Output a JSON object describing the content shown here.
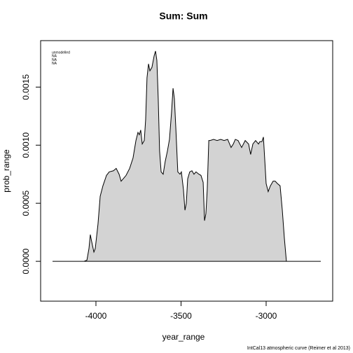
{
  "chart_data": {
    "type": "area",
    "title": "Sum:  Sum",
    "xlabel": "year_range",
    "ylabel": "prob_range",
    "legend": [
      "unmodelled",
      "NA",
      "NA",
      "NA"
    ],
    "caption": "IntCal13 atmospheric curve (Reimer et al 2013)",
    "color": "#d3d3d3",
    "line_color": "#000000",
    "x": [
      -4255,
      -4070,
      -4053,
      -4041,
      -4033,
      -4025,
      -4012,
      -4004,
      -3988,
      -3975,
      -3959,
      -3938,
      -3922,
      -3897,
      -3881,
      -3864,
      -3852,
      -3840,
      -3823,
      -3802,
      -3782,
      -3765,
      -3753,
      -3745,
      -3737,
      -3728,
      -3716,
      -3708,
      -3700,
      -3691,
      -3683,
      -3671,
      -3658,
      -3650,
      -3642,
      -3634,
      -3626,
      -3617,
      -3605,
      -3593,
      -3580,
      -3568,
      -3556,
      -3547,
      -3539,
      -3531,
      -3519,
      -3506,
      -3498,
      -3486,
      -3477,
      -3469,
      -3461,
      -3449,
      -3436,
      -3424,
      -3412,
      -3395,
      -3383,
      -3370,
      -3362,
      -3354,
      -3346,
      -3337,
      -3329,
      -3309,
      -3288,
      -3267,
      -3247,
      -3226,
      -3206,
      -3193,
      -3181,
      -3165,
      -3144,
      -3123,
      -3103,
      -3091,
      -3078,
      -3062,
      -3045,
      -3037,
      -3025,
      -3016,
      -3000,
      -2988,
      -2975,
      -2959,
      -2947,
      -2934,
      -2918,
      -2905,
      -2893,
      -2881,
      -2679
    ],
    "values": [
      0,
      0,
      1e-05,
      0.00011,
      0.00023,
      0.00017,
      8e-05,
      0.00011,
      0.00032,
      0.00056,
      0.00065,
      0.00074,
      0.00077,
      0.00078,
      0.0008,
      0.00075,
      0.00069,
      0.00071,
      0.00074,
      0.0008,
      0.00089,
      0.00104,
      0.00111,
      0.00109,
      0.00113,
      0.00101,
      0.00104,
      0.00122,
      0.00158,
      0.0017,
      0.00164,
      0.00167,
      0.00177,
      0.00181,
      0.00173,
      0.0014,
      0.00095,
      0.00077,
      0.00075,
      0.00086,
      0.00095,
      0.00105,
      0.00128,
      0.00149,
      0.0014,
      0.00116,
      0.00077,
      0.00075,
      0.00077,
      0.00062,
      0.00044,
      0.0005,
      0.00071,
      0.00077,
      0.00078,
      0.00075,
      0.00077,
      0.00075,
      0.00074,
      0.00068,
      0.00035,
      0.00041,
      0.00062,
      0.00104,
      0.00104,
      0.00105,
      0.00104,
      0.00105,
      0.00104,
      0.00105,
      0.00098,
      0.00101,
      0.00105,
      0.00104,
      0.00098,
      0.00104,
      0.00101,
      0.00092,
      0.00101,
      0.00104,
      0.00101,
      0.00103,
      0.00103,
      0.00107,
      0.00067,
      0.0006,
      0.00065,
      0.00069,
      0.00069,
      0.00067,
      0.00065,
      0.00044,
      0.0002,
      0,
      0
    ],
    "xlim": [
      -4325,
      -2609
    ],
    "ylim": [
      -0.000343,
      0.0019
    ],
    "xticks": [
      -4000,
      -3500,
      -3000
    ],
    "yticks": [
      {
        "value": 0,
        "label": "0.0000"
      },
      {
        "value": 0.0005,
        "label": "0.0005"
      },
      {
        "value": 0.001,
        "label": "0.0010"
      },
      {
        "value": 0.0015,
        "label": "0.0015"
      }
    ]
  }
}
